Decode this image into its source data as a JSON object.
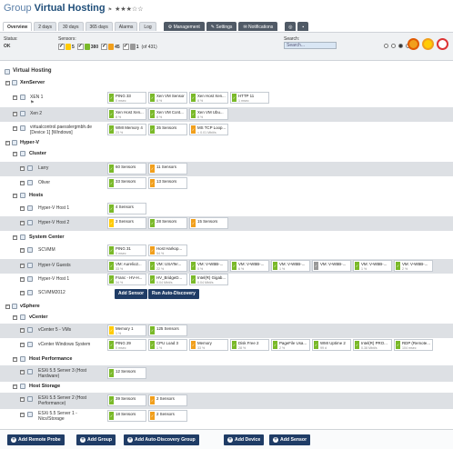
{
  "header": {
    "prefix": "Group",
    "title": "Virtual Hosting",
    "pin": "⚑",
    "stars": "★★★☆☆"
  },
  "tabs": [
    "Overview",
    "2 days",
    "30 days",
    "365 days",
    "Alarms",
    "Log"
  ],
  "tools": [
    "Management",
    "Settings",
    "Notifications"
  ],
  "status": {
    "label": "Status:",
    "value": "OK"
  },
  "sensors": {
    "label": "Sensors:",
    "counts": [
      {
        "value": "5",
        "color": "#ffcb05"
      },
      {
        "value": "380",
        "color": "#7ab929"
      },
      {
        "value": "45",
        "color": "#f19f1c"
      },
      {
        "value": "1",
        "color": "#999999"
      }
    ],
    "total": "(of 431)"
  },
  "search": {
    "label": "Search:",
    "placeholder": "Search..."
  },
  "tree": {
    "root": "Virtual Hosting",
    "xenserver": "XenServer",
    "xen1": "XEN 1",
    "xen2": "Xen 2",
    "vc_line1": "virtualcontrol.paesslergmbh.de",
    "vc_line2": "[Device 1] [Windows]",
    "hyperv": "Hyper-V",
    "cluster": "Cluster",
    "larry": "Larry",
    "oliver": "Oliver",
    "hosts": "Hosts",
    "hvhost1": "Hyper-V Host 1",
    "hvhost2": "Hyper-V Host 2",
    "syscenter": "System Center",
    "scvmm": "SCVMM",
    "hvguests": "Hyper-V Guests",
    "hvhost1b": "Hyper-V Host 1",
    "scvmm2012": "SCVMM2012",
    "vsphere": "vSphere",
    "vcenter": "vCenter",
    "vc5vms": "vCenter 5 - VMs",
    "vcwin": "vCenter Windows System",
    "hostperf": "Host Performance",
    "esxi3_line1": "ESXi 5.5 Server 3 (Host",
    "esxi3_line2": "Hardware)",
    "hoststorage": "Host Storage",
    "esxi2_line1": "ESXi 5.5 Server 2 (Host",
    "esxi2_line2": "Performance)",
    "esxi1_line1": "ESXi 5.5 Server 1 -",
    "esxi1_line2": "Nics/Storage"
  },
  "sensor_tiles": {
    "xen1": [
      {
        "name": "PING 33",
        "value": "0 msec",
        "color": "#7ab929"
      },
      {
        "name": "Xen VM Sensor",
        "value": "8 %",
        "color": "#7ab929"
      },
      {
        "name": "Xen Host Xen...",
        "value": "8 %",
        "color": "#7ab929"
      },
      {
        "name": "HTTP 11",
        "value": "1 msec",
        "color": "#7ab929"
      }
    ],
    "xen2": [
      {
        "name": "Xen Host Xen...",
        "value": "8 %",
        "color": "#7ab929"
      },
      {
        "name": "Xen VM Cont...",
        "value": "8 %",
        "color": "#7ab929"
      },
      {
        "name": "Xen VM Ubu...",
        "value": "8 %",
        "color": "#7ab929"
      }
    ],
    "vc": [
      {
        "name": "WMI Memory 4",
        "value": "23 %",
        "color": "#7ab929"
      },
      {
        "name": "35 Sensors",
        "value": "",
        "color": "#7ab929"
      },
      {
        "name": "MS TCP Loop...",
        "value": "< 0.01 Mbit/s",
        "color": "#f19f1c"
      }
    ],
    "larry": [
      {
        "name": "60 Sensors",
        "value": "",
        "color": "#7ab929"
      },
      {
        "name": "11 Sensors",
        "value": "",
        "color": "#f19f1c"
      }
    ],
    "oliver": [
      {
        "name": "33 Sensors",
        "value": "",
        "color": "#7ab929"
      },
      {
        "name": "13 Sensors",
        "value": "",
        "color": "#f19f1c"
      }
    ],
    "hvhost1": [
      {
        "name": "4 Sensors",
        "value": "",
        "color": "#7ab929"
      }
    ],
    "hvhost2": [
      {
        "name": "2 Sensors",
        "value": "",
        "color": "#ffcb05"
      },
      {
        "name": "28 Sensors",
        "value": "",
        "color": "#7ab929"
      },
      {
        "name": "15 Sensors",
        "value": "",
        "color": "#f19f1c"
      }
    ],
    "scvmm": [
      {
        "name": "PING 31",
        "value": "0 msec",
        "color": "#7ab929"
      },
      {
        "name": "Host Harkop...",
        "value": "54 %",
        "color": "#f19f1c"
      }
    ],
    "hvguests": [
      {
        "name": "VM: Aurelio2...",
        "value": "33 %",
        "color": "#7ab929"
      },
      {
        "name": "VM: USATer...",
        "value": "22 %",
        "color": "#7ab929"
      },
      {
        "name": "VM: V-WBB-...",
        "value": "0 %",
        "color": "#7ab929"
      },
      {
        "name": "VM: V-WBB-...",
        "value": "6 %",
        "color": "#7ab929"
      },
      {
        "name": "VM: V-WBB-...",
        "value": "1 %",
        "color": "#7ab929"
      },
      {
        "name": "VM: V-WBB-...",
        "value": "",
        "color": "#999999"
      },
      {
        "name": "VM: V-WBB-...",
        "value": "1 %",
        "color": "#7ab929"
      },
      {
        "name": "VM: V-WBB-...",
        "value": "2 %",
        "color": "#7ab929"
      }
    ],
    "hvhost1b": [
      {
        "name": "Franc - HV-H...",
        "value": "34 %",
        "color": "#7ab929"
      },
      {
        "name": "HV_BridgeD...",
        "value": "0.04 Mbit/s",
        "color": "#7ab929"
      },
      {
        "name": "Intel(R) Gigab...",
        "value": "0.04 Mbit/s",
        "color": "#7ab929"
      }
    ],
    "vc5vms": [
      {
        "name": "Memory 1",
        "value": "1 %",
        "color": "#ffcb05"
      },
      {
        "name": "125 Sensors",
        "value": "",
        "color": "#7ab929"
      }
    ],
    "vcwin": [
      {
        "name": "PING 29",
        "value": "0 msec",
        "color": "#7ab929"
      },
      {
        "name": "CPU Load 3",
        "value": "1 %",
        "color": "#7ab929"
      },
      {
        "name": "Memory",
        "value": "33 %",
        "color": "#f19f1c"
      },
      {
        "name": "Disk Free 2",
        "value": "28 %",
        "color": "#7ab929"
      },
      {
        "name": "PageFile Usa...",
        "value": "2 %",
        "color": "#7ab929"
      },
      {
        "name": "WMI Uptime 2",
        "value": "99 d",
        "color": "#7ab929"
      },
      {
        "name": "Intel(R) PRO...",
        "value": "0.38 Mbit/s",
        "color": "#7ab929"
      },
      {
        "name": "RDP (Remote...",
        "value": "104 msec",
        "color": "#7ab929"
      }
    ],
    "esxi3": [
      {
        "name": "12 Sensors",
        "value": "",
        "color": "#7ab929"
      }
    ],
    "esxi2": [
      {
        "name": "39 Sensors",
        "value": "",
        "color": "#7ab929"
      },
      {
        "name": "2 Sensors",
        "value": "",
        "color": "#f19f1c"
      }
    ],
    "esxi1": [
      {
        "name": "18 Sensors",
        "value": "",
        "color": "#7ab929"
      },
      {
        "name": "2 Sensors",
        "value": "",
        "color": "#f19f1c"
      }
    ]
  },
  "actions": {
    "add_sensor": "Add Sensor",
    "auto_discovery": "Run Auto-Discovery"
  },
  "footer": [
    "Add Remote Probe",
    "Add Group",
    "Add Auto-Discovery Group",
    "Add Device",
    "Add Sensor"
  ]
}
